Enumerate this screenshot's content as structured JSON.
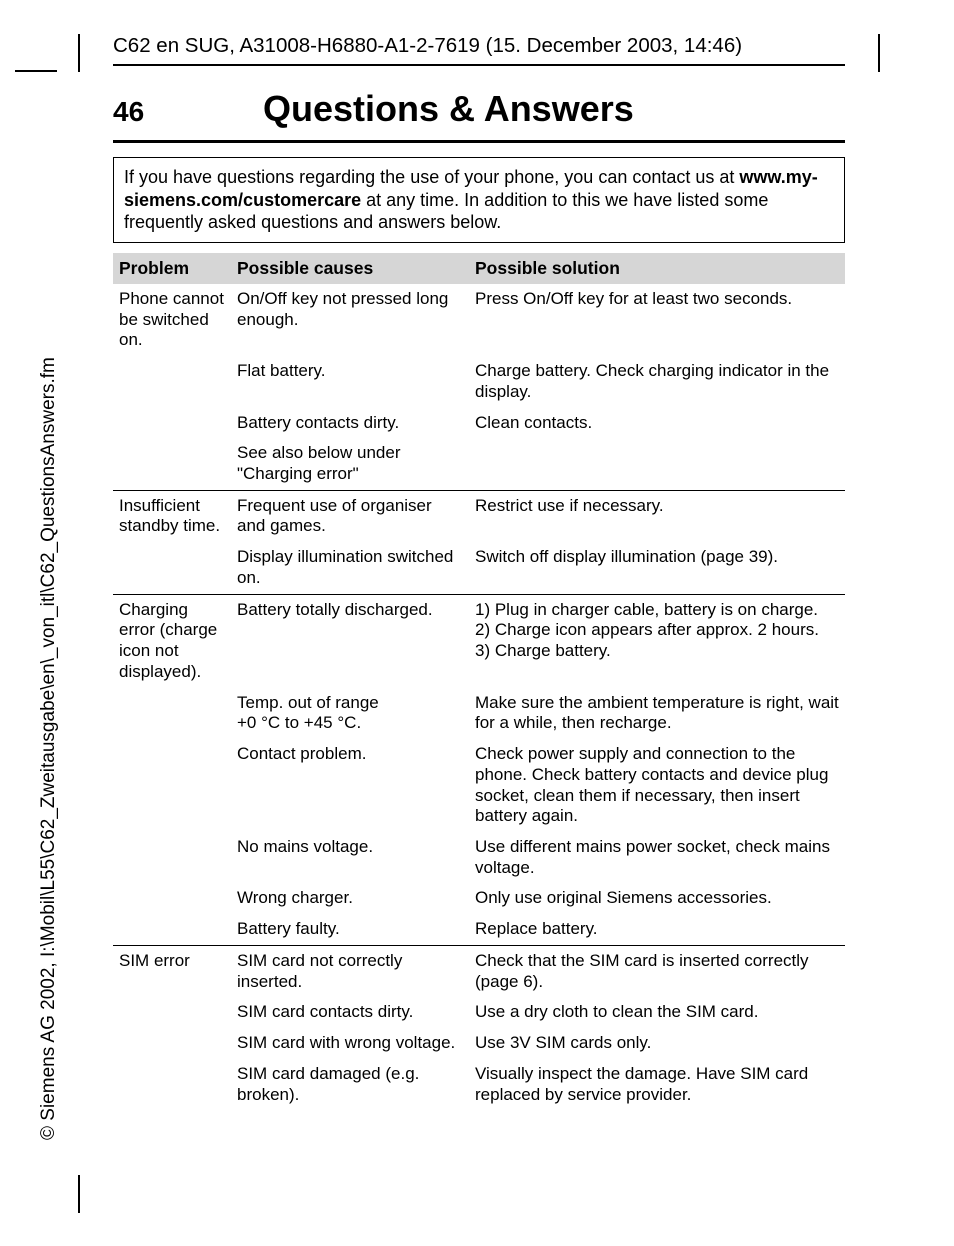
{
  "side_copyright": "© Siemens AG 2002, I:\\Mobil\\L55\\C62_Zweitausgabe\\en\\_von_itl\\C62_QuestionsAnswers.fm",
  "doc_header": "C62 en SUG, A31008-H6880-A1-2-7619 (15. December 2003, 14:46)",
  "page_number": "46",
  "page_title": "Questions & Answers",
  "intro": {
    "part1": "If you have questions regarding the use of your phone, you can contact us at ",
    "bold": "www.my-siemens.com/customercare",
    "part2": " at any time. In addition to this we have listed some frequently asked questions and answers below."
  },
  "table": {
    "headers": {
      "problem": "Problem",
      "cause": "Possible causes",
      "solution": "Possible solution"
    },
    "header_bg": "#d6d6d6",
    "col_widths": {
      "problem": 118,
      "cause": 238
    },
    "groups": [
      {
        "problem": "Phone cannot be switched on.",
        "rows": [
          {
            "cause": "On/Off key not pressed long enough.",
            "solution": "Press On/Off key for at least two seconds."
          },
          {
            "cause": "Flat battery.",
            "solution": "Charge battery. Check charging indicator in the display."
          },
          {
            "cause": "Battery contacts dirty.",
            "solution": "Clean contacts."
          },
          {
            "cause": "See also below under \"Charging error\"",
            "solution": ""
          }
        ]
      },
      {
        "problem": "Insufficient standby time.",
        "rows": [
          {
            "cause": "Frequent use of organiser and games.",
            "solution": "Restrict use if necessary."
          },
          {
            "cause": "Display illumination switched on.",
            "solution": "Switch off display illumination (page 39)."
          }
        ]
      },
      {
        "problem": "Charging error (charge icon not displayed).",
        "rows": [
          {
            "cause": "Battery totally discharged.",
            "solution": "1) Plug in charger cable, battery is on charge.\n2) Charge icon appears after approx. 2 hours.\n3) Charge battery."
          },
          {
            "cause": "Temp. out of range\n+0 °C to +45 °C.",
            "solution": "Make sure the ambient temperature is right, wait for a while, then recharge."
          },
          {
            "cause": "Contact problem.",
            "solution": "Check power supply and connection to the phone. Check battery contacts and device plug socket, clean them if necessary, then insert battery again."
          },
          {
            "cause": "No mains voltage.",
            "solution": "Use different mains power socket, check mains voltage."
          },
          {
            "cause": "Wrong charger.",
            "solution": "Only use original Siemens accessories."
          },
          {
            "cause": "Battery faulty.",
            "solution": "Replace battery."
          }
        ]
      },
      {
        "problem": "SIM error",
        "rows": [
          {
            "cause": "SIM card not correctly inserted.",
            "solution": "Check that the SIM card is inserted correctly (page 6)."
          },
          {
            "cause": "SIM card contacts dirty.",
            "solution": "Use a dry cloth to clean the SIM card."
          },
          {
            "cause": "SIM card with wrong voltage.",
            "solution": "Use 3V SIM cards only."
          },
          {
            "cause": "SIM card damaged (e.g. broken).",
            "solution": "Visually inspect the damage. Have SIM card replaced by service provider."
          }
        ]
      }
    ]
  }
}
